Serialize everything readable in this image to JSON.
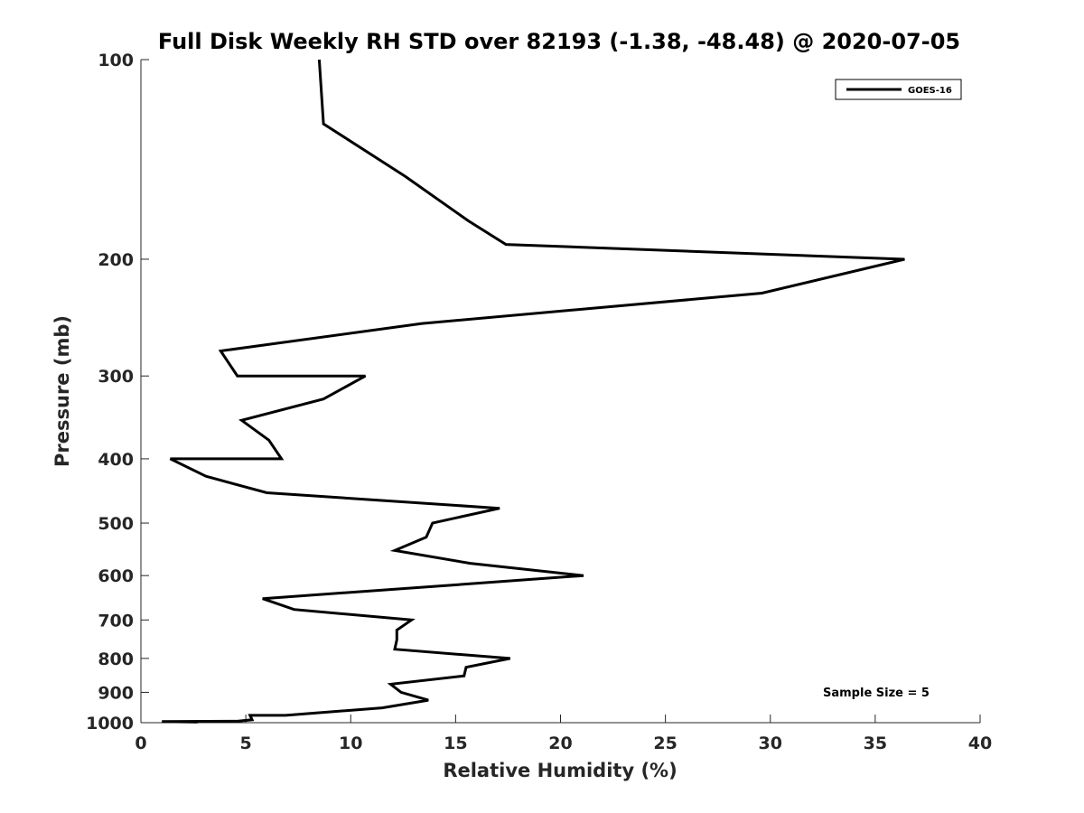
{
  "chart_data": {
    "type": "line",
    "title": "Full Disk Weekly RH STD over 82193 (-1.38, -48.48) @ 2020-07-05",
    "xlabel": "Relative Humidity (%)",
    "ylabel": "Pressure (mb)",
    "xlim": [
      0,
      40
    ],
    "ylim": [
      100,
      1000
    ],
    "y_scale": "log",
    "y_reversed": true,
    "x_ticks": [
      0,
      5,
      10,
      15,
      20,
      25,
      30,
      35,
      40
    ],
    "x_tick_labels": [
      "0",
      "5",
      "10",
      "15",
      "20",
      "25",
      "30",
      "35",
      "40"
    ],
    "y_ticks": [
      100,
      200,
      300,
      400,
      500,
      600,
      700,
      800,
      900,
      1000
    ],
    "y_tick_labels": [
      "100",
      "200",
      "300",
      "400",
      "500",
      "600",
      "700",
      "800",
      "900",
      "1000"
    ],
    "grid": false,
    "legend_position": "top-right",
    "annotation": "Sample Size = 5",
    "series": [
      {
        "name": "GOES-16",
        "color": "#000000",
        "points": [
          [
            8.5,
            100
          ],
          [
            8.7,
            125
          ],
          [
            12.6,
            150
          ],
          [
            15.6,
            175
          ],
          [
            17.4,
            190
          ],
          [
            36.4,
            200
          ],
          [
            29.6,
            225
          ],
          [
            13.4,
            250
          ],
          [
            3.8,
            275
          ],
          [
            4.6,
            300
          ],
          [
            10.7,
            300
          ],
          [
            8.7,
            325
          ],
          [
            4.8,
            350
          ],
          [
            6.1,
            375
          ],
          [
            6.7,
            400
          ],
          [
            1.4,
            400
          ],
          [
            3.1,
            425
          ],
          [
            6.0,
            450
          ],
          [
            17.1,
            475
          ],
          [
            13.9,
            500
          ],
          [
            13.6,
            525
          ],
          [
            12.1,
            550
          ],
          [
            15.7,
            575
          ],
          [
            21.1,
            600
          ],
          [
            14.9,
            620
          ],
          [
            5.8,
            650
          ],
          [
            7.3,
            675
          ],
          [
            12.9,
            700
          ],
          [
            12.2,
            725
          ],
          [
            12.2,
            750
          ],
          [
            12.1,
            775
          ],
          [
            17.6,
            800
          ],
          [
            15.5,
            825
          ],
          [
            15.4,
            850
          ],
          [
            11.9,
            875
          ],
          [
            12.4,
            900
          ],
          [
            13.7,
            925
          ],
          [
            11.5,
            950
          ],
          [
            6.9,
            975
          ],
          [
            5.2,
            975
          ],
          [
            5.3,
            990
          ],
          [
            4.6,
            995
          ],
          [
            1.0,
            996
          ],
          [
            2.7,
            998
          ],
          [
            2.7,
            1000
          ]
        ]
      }
    ]
  }
}
